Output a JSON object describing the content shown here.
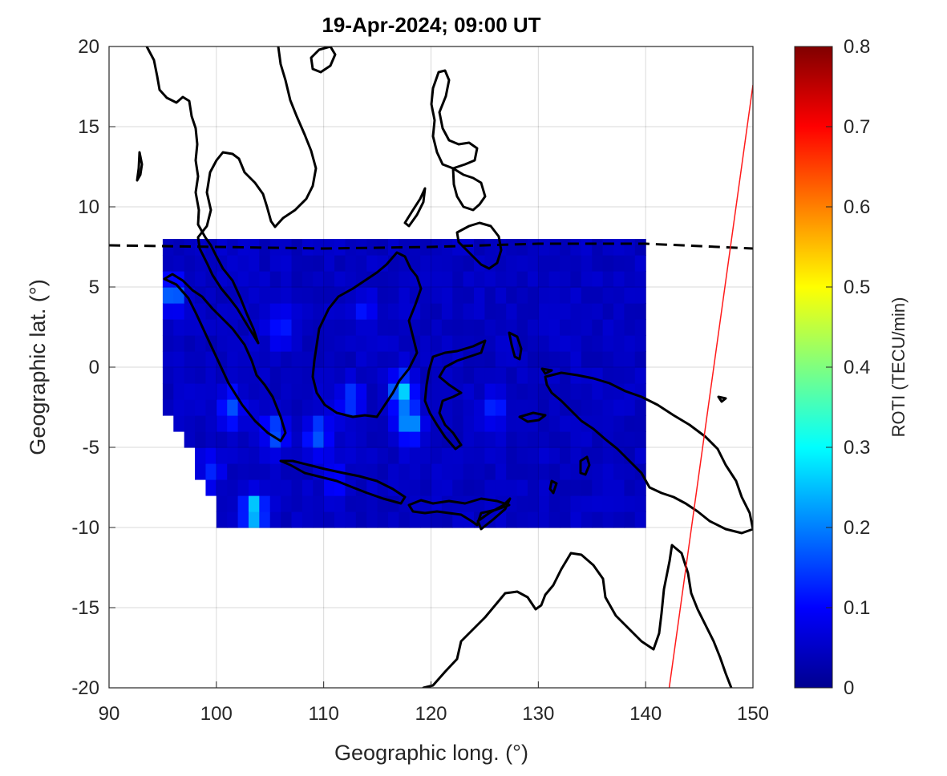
{
  "chart_data": {
    "type": "heatmap",
    "title": "19-Apr-2024; 09:00 UT",
    "xlabel": "Geographic long. (°)",
    "ylabel": "Geographic lat. (°)",
    "xlim": [
      90,
      150
    ],
    "ylim": [
      -20,
      20
    ],
    "xticks": [
      "90",
      "100",
      "110",
      "120",
      "130",
      "140",
      "150"
    ],
    "yticks": [
      "20",
      "15",
      "10",
      "5",
      "0",
      "-5",
      "-10",
      "-15",
      "-20"
    ],
    "grid": true,
    "colormap": "jet",
    "colorbar": {
      "label": "ROTI (TECU/min)",
      "range": [
        0,
        0.8
      ],
      "ticks": [
        "0.8",
        "0.7",
        "0.6",
        "0.5",
        "0.4",
        "0.3",
        "0.2",
        "0.1",
        "0"
      ]
    },
    "roti_grid": {
      "lon_range": [
        95,
        140
      ],
      "lat_range": [
        -10,
        8
      ],
      "background_value": 0.04,
      "hotspots": [
        {
          "lon": 103.5,
          "lat": -9.0,
          "value": 0.28
        },
        {
          "lon": 117.3,
          "lat": -1.5,
          "value": 0.26
        },
        {
          "lon": 118.0,
          "lat": -3.5,
          "value": 0.22
        },
        {
          "lon": 96.0,
          "lat": 4.5,
          "value": 0.18
        },
        {
          "lon": 105.5,
          "lat": -4.0,
          "value": 0.16
        },
        {
          "lon": 109.5,
          "lat": -4.2,
          "value": 0.17
        },
        {
          "lon": 101.5,
          "lat": -2.5,
          "value": 0.15
        },
        {
          "lon": 112.5,
          "lat": -2.0,
          "value": 0.14
        },
        {
          "lon": 126.0,
          "lat": -2.5,
          "value": 0.13
        },
        {
          "lon": 106.0,
          "lat": 2.5,
          "value": 0.12
        },
        {
          "lon": 114.0,
          "lat": 3.5,
          "value": 0.1
        },
        {
          "lon": 111.0,
          "lat": -7.0,
          "value": 0.11
        },
        {
          "lon": 99.5,
          "lat": -6.5,
          "value": 0.12
        }
      ]
    },
    "magnetic_equator": [
      [
        90,
        7.6
      ],
      [
        100,
        7.5
      ],
      [
        110,
        7.4
      ],
      [
        120,
        7.5
      ],
      [
        130,
        7.7
      ],
      [
        140,
        7.7
      ],
      [
        150,
        7.4
      ]
    ],
    "red_line": [
      [
        142.2,
        -20
      ],
      [
        150,
        17.6
      ]
    ]
  }
}
